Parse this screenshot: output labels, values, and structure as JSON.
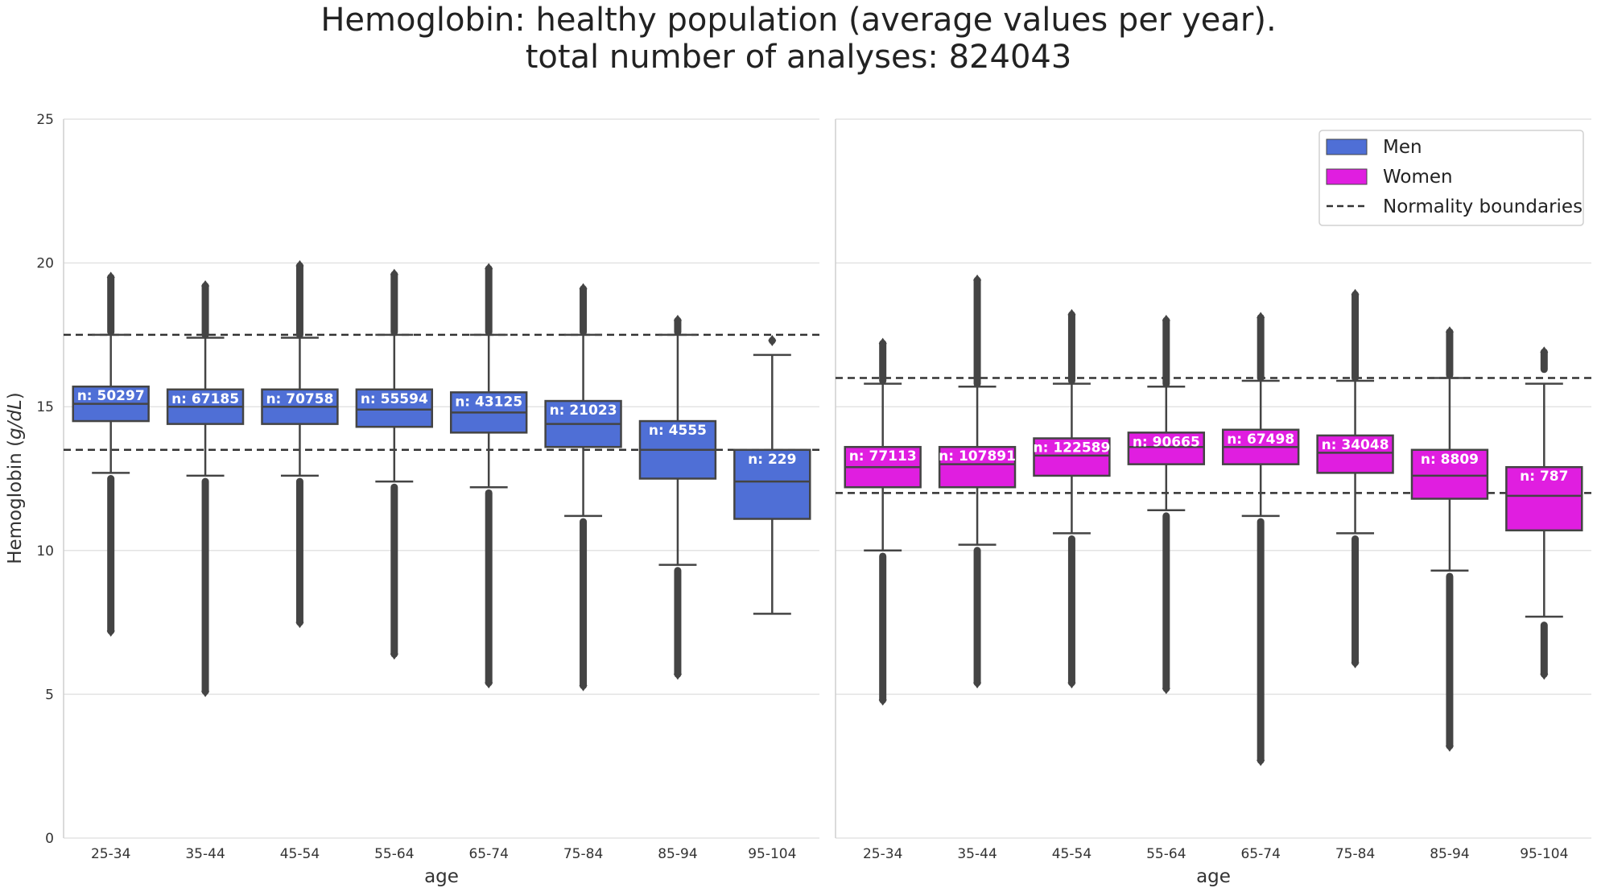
{
  "chart_data": {
    "type": "box",
    "title_line1": "Hemoglobin: healthy population (average values per year).",
    "title_line2": "total number of analyses: 824043",
    "ylabel_text": "Hemoglobin (",
    "ylabel_unit": "g/dL",
    "ylabel_close": ")",
    "xlabel": "age",
    "ylim": [
      0,
      25
    ],
    "yticks": [
      "0",
      "5",
      "10",
      "15",
      "20",
      "25"
    ],
    "categories": [
      "25-34",
      "35-44",
      "45-54",
      "55-64",
      "65-74",
      "75-84",
      "85-94",
      "95-104"
    ],
    "colors": {
      "men": "#4f6fd6",
      "women": "#e01ee0",
      "boundary": "#333333",
      "box_edge": "#444444"
    },
    "legend": {
      "men": "Men",
      "women": "Women",
      "boundaries": "Normality boundaries",
      "position": "top-right"
    },
    "series": [
      {
        "name": "Men",
        "normality_boundaries": [
          13.5,
          17.5
        ],
        "boxes": [
          {
            "category": "25-34",
            "q1": 14.5,
            "median": 15.1,
            "q3": 15.7,
            "whisker_low": 12.7,
            "whisker_high": 17.5,
            "outliers_low": [
              12.5,
              7.2
            ],
            "outliers_high": [
              17.6,
              19.5
            ],
            "n_label": "n: 50297"
          },
          {
            "category": "35-44",
            "q1": 14.4,
            "median": 15.0,
            "q3": 15.6,
            "whisker_low": 12.6,
            "whisker_high": 17.4,
            "outliers_low": [
              12.4,
              5.1
            ],
            "outliers_high": [
              17.5,
              19.2
            ],
            "n_label": "n: 67185"
          },
          {
            "category": "45-54",
            "q1": 14.4,
            "median": 15.0,
            "q3": 15.6,
            "whisker_low": 12.6,
            "whisker_high": 17.4,
            "outliers_low": [
              12.4,
              7.5
            ],
            "outliers_high": [
              17.5,
              19.9
            ],
            "n_label": "n: 70758"
          },
          {
            "category": "55-64",
            "q1": 14.3,
            "median": 14.9,
            "q3": 15.6,
            "whisker_low": 12.4,
            "whisker_high": 17.5,
            "outliers_low": [
              12.2,
              6.4
            ],
            "outliers_high": [
              17.6,
              19.6
            ],
            "n_label": "n: 55594"
          },
          {
            "category": "65-74",
            "q1": 14.1,
            "median": 14.8,
            "q3": 15.5,
            "whisker_low": 12.2,
            "whisker_high": 17.5,
            "outliers_low": [
              12.0,
              5.4
            ],
            "outliers_high": [
              17.6,
              19.8
            ],
            "n_label": "n: 43125"
          },
          {
            "category": "75-84",
            "q1": 13.6,
            "median": 14.4,
            "q3": 15.2,
            "whisker_low": 11.2,
            "whisker_high": 17.5,
            "outliers_low": [
              11.0,
              5.3
            ],
            "outliers_high": [
              17.6,
              19.1
            ],
            "n_label": "n: 21023"
          },
          {
            "category": "85-94",
            "q1": 12.5,
            "median": 13.5,
            "q3": 14.5,
            "whisker_low": 9.5,
            "whisker_high": 17.5,
            "outliers_low": [
              9.3,
              5.7
            ],
            "outliers_high": [
              17.6,
              18.0
            ],
            "n_label": "n: 4555"
          },
          {
            "category": "95-104",
            "q1": 11.1,
            "median": 12.4,
            "q3": 13.5,
            "whisker_low": 7.8,
            "whisker_high": 16.8,
            "outliers_low": [],
            "outliers_high": [
              17.3,
              17.3
            ],
            "n_label": "n: 229"
          }
        ]
      },
      {
        "name": "Women",
        "normality_boundaries": [
          12.0,
          16.0
        ],
        "boxes": [
          {
            "category": "25-34",
            "q1": 12.2,
            "median": 12.9,
            "q3": 13.6,
            "whisker_low": 10.0,
            "whisker_high": 15.8,
            "outliers_low": [
              9.8,
              6.0,
              4.8
            ],
            "outliers_high": [
              15.9,
              17.2
            ],
            "n_label": "n: 77113"
          },
          {
            "category": "35-44",
            "q1": 12.2,
            "median": 13.0,
            "q3": 13.6,
            "whisker_low": 10.2,
            "whisker_high": 15.7,
            "outliers_low": [
              10.0,
              5.4
            ],
            "outliers_high": [
              15.8,
              17.0,
              19.4,
              19.4
            ],
            "n_label": "n: 107891"
          },
          {
            "category": "45-54",
            "q1": 12.6,
            "median": 13.3,
            "q3": 13.9,
            "whisker_low": 10.6,
            "whisker_high": 15.8,
            "outliers_low": [
              10.4,
              5.4
            ],
            "outliers_high": [
              15.9,
              18.2
            ],
            "n_label": "n: 122589"
          },
          {
            "category": "55-64",
            "q1": 13.0,
            "median": 13.6,
            "q3": 14.1,
            "whisker_low": 11.4,
            "whisker_high": 15.7,
            "outliers_low": [
              11.2,
              6.8,
              6.2,
              5.2,
              5.2
            ],
            "outliers_high": [
              15.8,
              18.0
            ],
            "n_label": "n: 90665"
          },
          {
            "category": "65-74",
            "q1": 13.0,
            "median": 13.6,
            "q3": 14.2,
            "whisker_low": 11.2,
            "whisker_high": 15.9,
            "outliers_low": [
              11.0,
              6.0,
              2.7,
              2.7
            ],
            "outliers_high": [
              16.0,
              18.1
            ],
            "n_label": "n: 67498"
          },
          {
            "category": "75-84",
            "q1": 12.7,
            "median": 13.4,
            "q3": 14.0,
            "whisker_low": 10.6,
            "whisker_high": 15.9,
            "outliers_low": [
              10.4,
              6.9,
              6.1,
              6.1
            ],
            "outliers_high": [
              16.0,
              17.6,
              18.9,
              18.9
            ],
            "n_label": "n: 34048"
          },
          {
            "category": "85-94",
            "q1": 11.8,
            "median": 12.6,
            "q3": 13.5,
            "whisker_low": 9.3,
            "whisker_high": 16.0,
            "outliers_low": [
              9.1,
              5.5,
              4.5,
              3.2,
              3.2
            ],
            "outliers_high": [
              16.1,
              17.6
            ],
            "n_label": "n: 8809"
          },
          {
            "category": "95-104",
            "q1": 10.7,
            "median": 11.9,
            "q3": 12.9,
            "whisker_low": 7.7,
            "whisker_high": 15.8,
            "outliers_low": [
              7.4,
              6.8,
              5.7,
              5.7
            ],
            "outliers_high": [
              16.3,
              16.9
            ],
            "n_label": "n: 787"
          }
        ]
      }
    ]
  }
}
